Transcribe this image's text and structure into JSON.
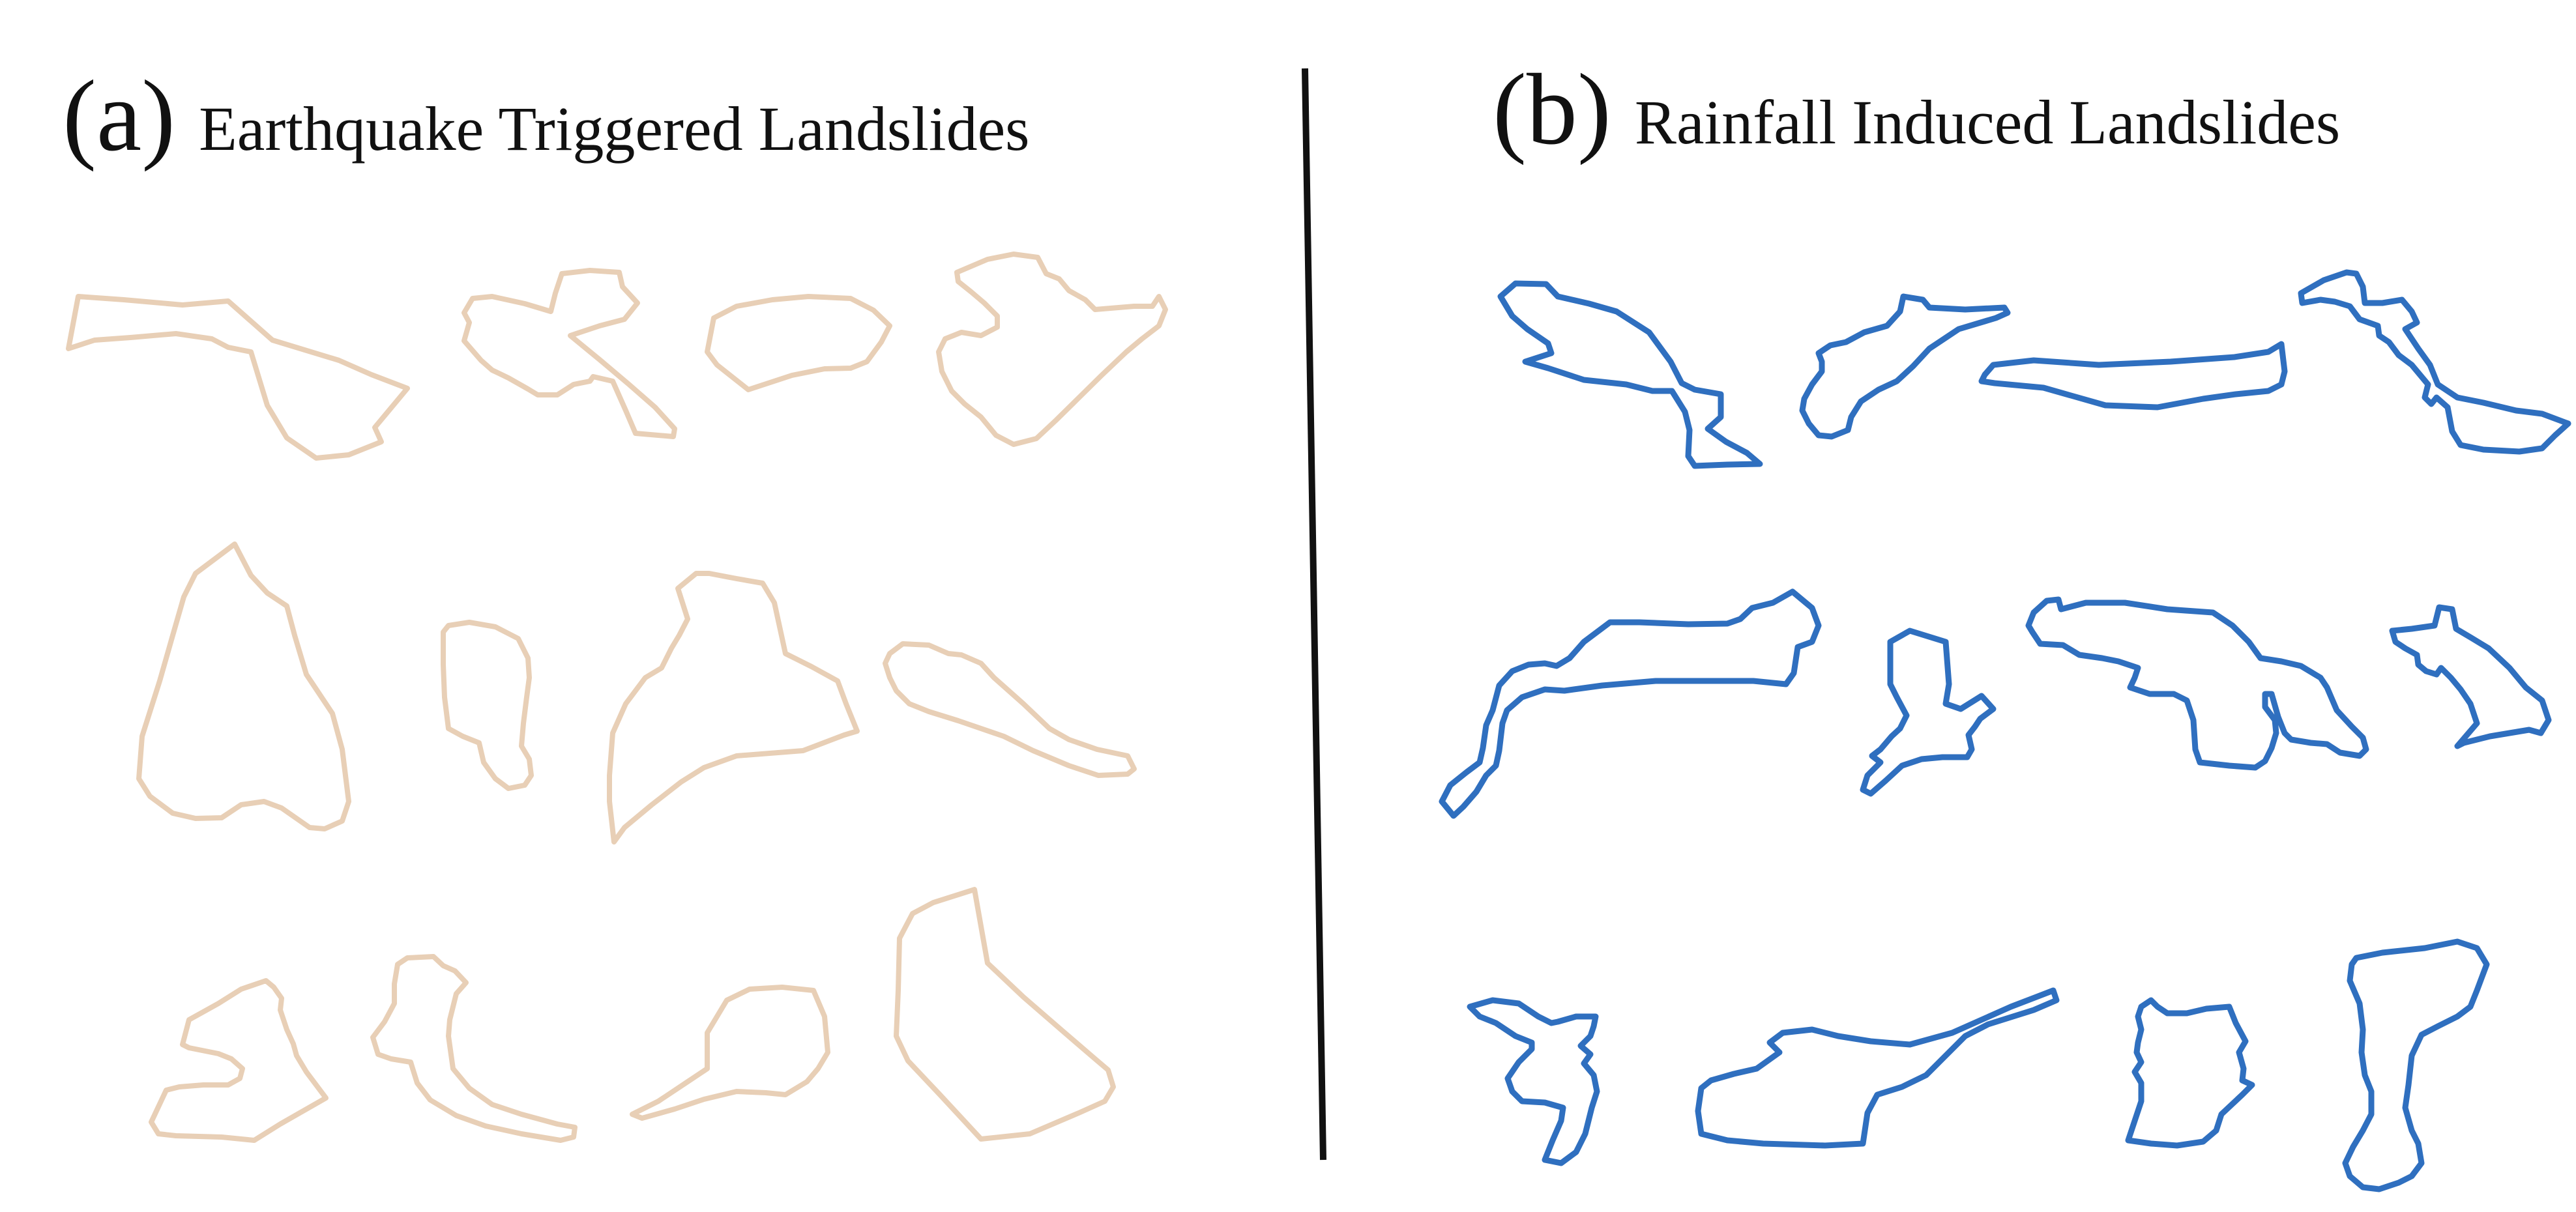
{
  "colors": {
    "earthquake_outline": "#e8cfb6",
    "rainfall_outline": "#2f6fbf",
    "divider": "#111111",
    "text": "#111111"
  },
  "panels": {
    "a": {
      "letter": "(a)",
      "title": "Earthquake Triggered Landslides",
      "outline_count": 12
    },
    "b": {
      "letter": "(b)",
      "title": "Rainfall Induced Landslides",
      "outline_count": 12
    }
  }
}
